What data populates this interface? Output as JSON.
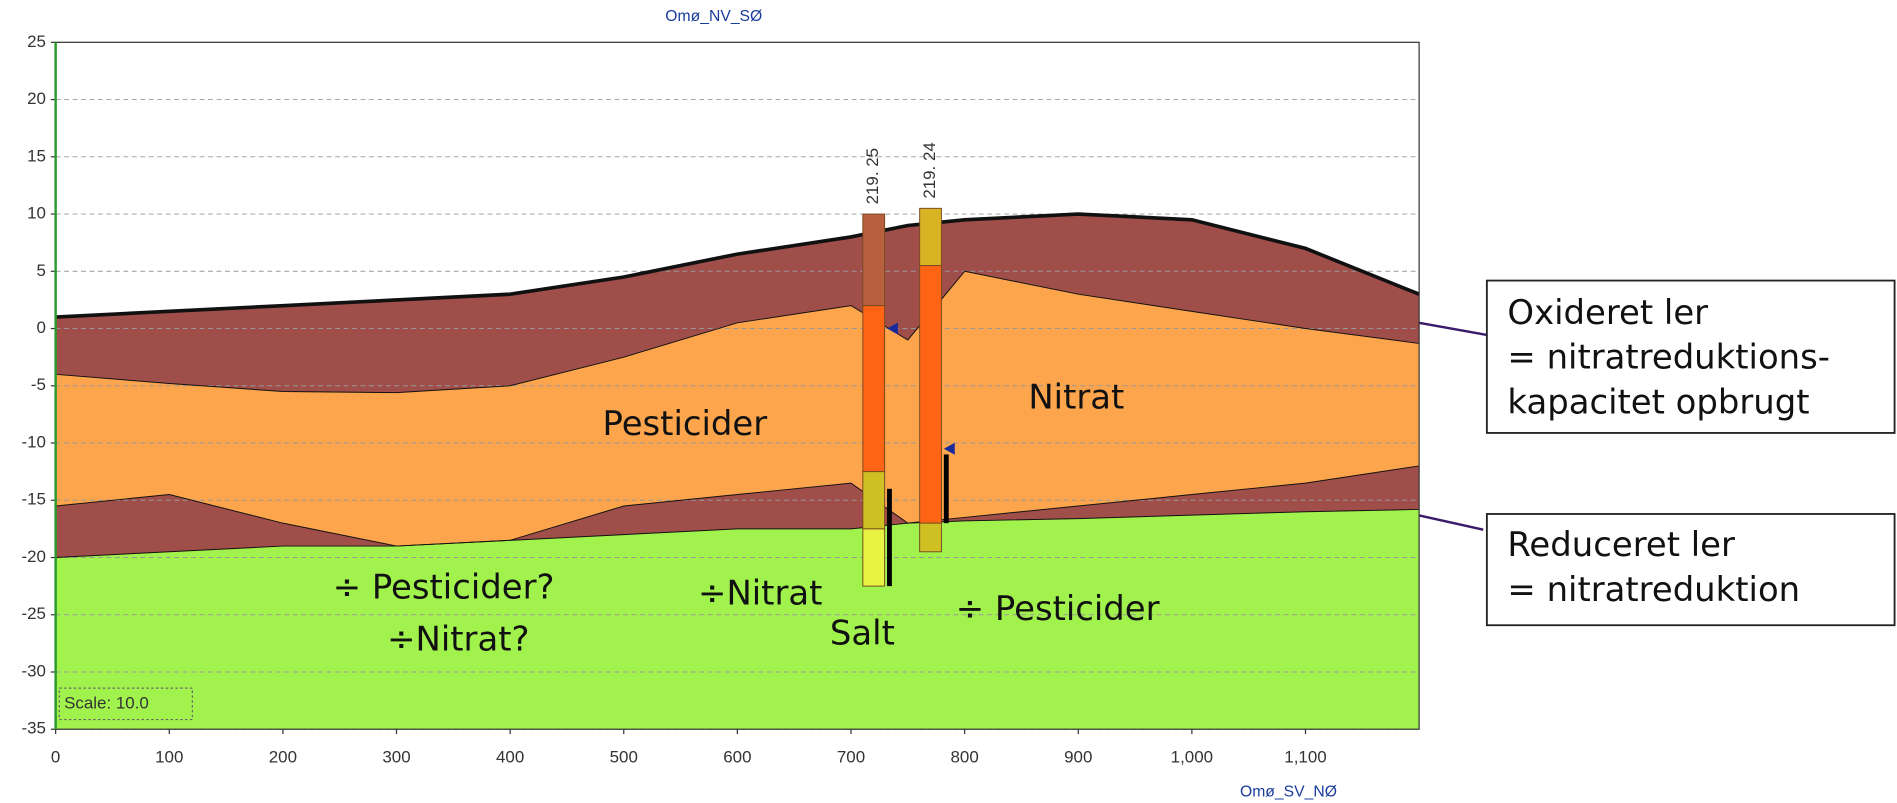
{
  "chart_data": {
    "type": "cross-section",
    "title": "Omø_NV_SØ",
    "x_label": "Omø_SV_NØ",
    "scale_label": "Scale: 10.0",
    "xlim": [
      0,
      1200
    ],
    "ylim": [
      -35,
      25
    ],
    "xticks": [
      0,
      100,
      200,
      300,
      400,
      500,
      600,
      700,
      800,
      900,
      {
        "value": 1000,
        "label": "1,000"
      },
      {
        "value": 1100,
        "label": "1,100"
      }
    ],
    "yticks": [
      25,
      20,
      15,
      10,
      5,
      0,
      -5,
      -10,
      -15,
      -20,
      -25,
      -30,
      -35
    ],
    "grid": true,
    "x": [
      0,
      100,
      200,
      300,
      400,
      500,
      600,
      700,
      750,
      800,
      900,
      1000,
      1100,
      1200
    ],
    "boundaries": [
      {
        "fill": "#a04e4a",
        "values": [
          1,
          1.5,
          2,
          2.5,
          3,
          4.5,
          6.5,
          8,
          9,
          9.5,
          10,
          9.5,
          7,
          3
        ]
      },
      {
        "fill": "#fca54c",
        "values": [
          -4,
          -4.8,
          -5.5,
          -5.6,
          -5,
          -2.5,
          0.5,
          2,
          -1,
          5,
          3,
          1.5,
          0,
          -1.3
        ]
      },
      {
        "fill": "#a04e4a",
        "values": [
          -15.5,
          -14.5,
          -17,
          -19,
          -18.5,
          -15.5,
          -14.5,
          -13.5,
          -17,
          -16.5,
          -15.5,
          -14.5,
          -13.5,
          -12
        ]
      },
      {
        "fill": "#a2f24e",
        "values": [
          -20,
          -19.5,
          -19,
          -19,
          -18.5,
          -18,
          -17.5,
          -17.5,
          -17,
          -16.8,
          -16.6,
          -16.3,
          -16,
          -15.8
        ]
      }
    ],
    "wells": [
      {
        "name": "219. 25",
        "x": 720,
        "water_level": 0,
        "screen": [
          -14,
          -22.5
        ],
        "segments": [
          {
            "top": 10,
            "bottom": 2,
            "color": "#b8603e"
          },
          {
            "top": 2,
            "bottom": -12.5,
            "color": "#ff6414"
          },
          {
            "top": -12.5,
            "bottom": -17.5,
            "color": "#cfc024"
          },
          {
            "top": -17.5,
            "bottom": -22.5,
            "color": "#e8f240"
          }
        ]
      },
      {
        "name": "219. 24",
        "x": 770,
        "water_level": -10.5,
        "screen": [
          -11,
          -17
        ],
        "segments": [
          {
            "top": 10.5,
            "bottom": 5.5,
            "color": "#d8b424"
          },
          {
            "top": 5.5,
            "bottom": -17,
            "color": "#ff6414"
          },
          {
            "top": -17,
            "bottom": -19.5,
            "color": "#cfc024"
          }
        ]
      }
    ],
    "annotations": [
      "Pesticider",
      "Nitrat",
      "÷ Pesticider?",
      "÷Nitrat?",
      "÷Nitrat",
      "Salt",
      "÷ Pesticider"
    ],
    "callouts": [
      {
        "lines": [
          "Oxideret ler",
          "= nitratreduktions-",
          "kapacitet opbrugt"
        ]
      },
      {
        "lines": [
          "Reduceret ler",
          "= nitratreduktion"
        ]
      }
    ]
  }
}
